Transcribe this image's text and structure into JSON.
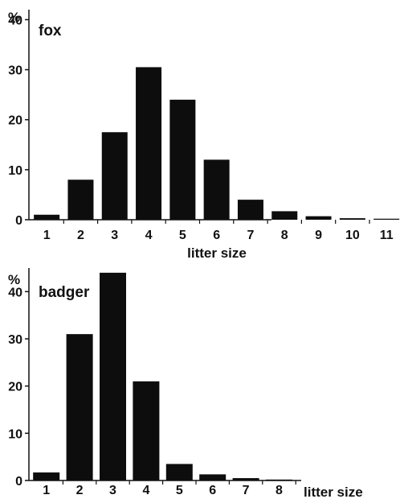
{
  "chart_data": [
    {
      "type": "bar",
      "title": "fox",
      "unit_label": "%",
      "xlabel": "litter size",
      "categories": [
        "1",
        "2",
        "3",
        "4",
        "5",
        "6",
        "7",
        "8",
        "9",
        "10",
        "11"
      ],
      "values": [
        1.0,
        8.0,
        17.5,
        30.5,
        24.0,
        12.0,
        4.0,
        1.7,
        0.7,
        0.3,
        0.2
      ],
      "ylim": [
        0,
        42
      ],
      "yticks": [
        0,
        10,
        20,
        30,
        40
      ],
      "grid": false,
      "bar_color": "#0d0d0d"
    },
    {
      "type": "bar",
      "title": "badger",
      "unit_label": "%",
      "xlabel": "litter size",
      "categories": [
        "1",
        "2",
        "3",
        "4",
        "5",
        "6",
        "7",
        "8"
      ],
      "values": [
        1.7,
        31.0,
        44.0,
        21.0,
        3.5,
        1.3,
        0.5,
        0.2
      ],
      "ylim": [
        0,
        45
      ],
      "yticks": [
        0,
        10,
        20,
        30,
        40
      ],
      "grid": false,
      "bar_color": "#0d0d0d"
    }
  ]
}
